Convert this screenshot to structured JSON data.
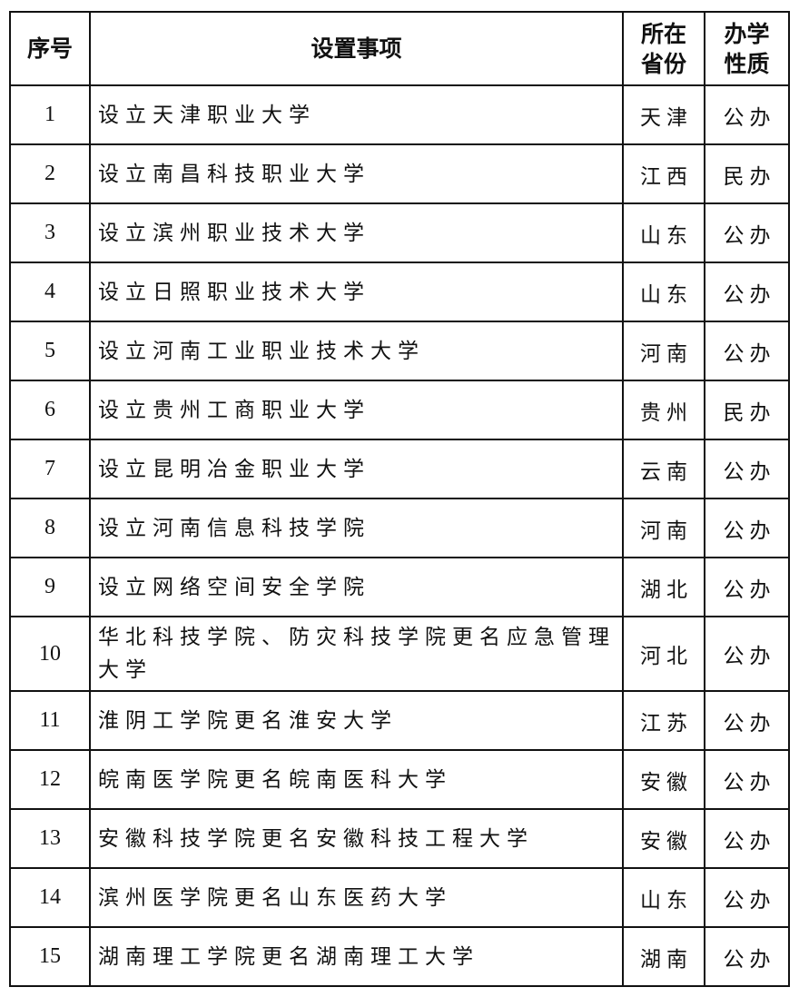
{
  "header": {
    "no": "序号",
    "item": "设置事项",
    "province": "所在\n省份",
    "type": "办学\n性质"
  },
  "header_lines": {
    "province": [
      "所在",
      "省份"
    ],
    "type": [
      "办学",
      "性质"
    ]
  },
  "rows": [
    {
      "no": "1",
      "item": "设立天津职业大学",
      "province": "天津",
      "type": "公办"
    },
    {
      "no": "2",
      "item": "设立南昌科技职业大学",
      "province": "江西",
      "type": "民办"
    },
    {
      "no": "3",
      "item": "设立滨州职业技术大学",
      "province": "山东",
      "type": "公办"
    },
    {
      "no": "4",
      "item": "设立日照职业技术大学",
      "province": "山东",
      "type": "公办"
    },
    {
      "no": "5",
      "item": "设立河南工业职业技术大学",
      "province": "河南",
      "type": "公办"
    },
    {
      "no": "6",
      "item": "设立贵州工商职业大学",
      "province": "贵州",
      "type": "民办"
    },
    {
      "no": "7",
      "item": "设立昆明冶金职业大学",
      "province": "云南",
      "type": "公办"
    },
    {
      "no": "8",
      "item": "设立河南信息科技学院",
      "province": "河南",
      "type": "公办"
    },
    {
      "no": "9",
      "item": "设立网络空间安全学院",
      "province": "湖北",
      "type": "公办"
    },
    {
      "no": "10",
      "item": "华北科技学院、防灾科技学院更名应急管理大学",
      "province": "河北",
      "type": "公办"
    },
    {
      "no": "11",
      "item": "淮阴工学院更名淮安大学",
      "province": "江苏",
      "type": "公办"
    },
    {
      "no": "12",
      "item": "皖南医学院更名皖南医科大学",
      "province": "安徽",
      "type": "公办"
    },
    {
      "no": "13",
      "item": "安徽科技学院更名安徽科技工程大学",
      "province": "安徽",
      "type": "公办"
    },
    {
      "no": "14",
      "item": "滨州医学院更名山东医药大学",
      "province": "山东",
      "type": "公办"
    },
    {
      "no": "15",
      "item": "湖南理工学院更名湖南理工大学",
      "province": "湖南",
      "type": "公办"
    }
  ]
}
